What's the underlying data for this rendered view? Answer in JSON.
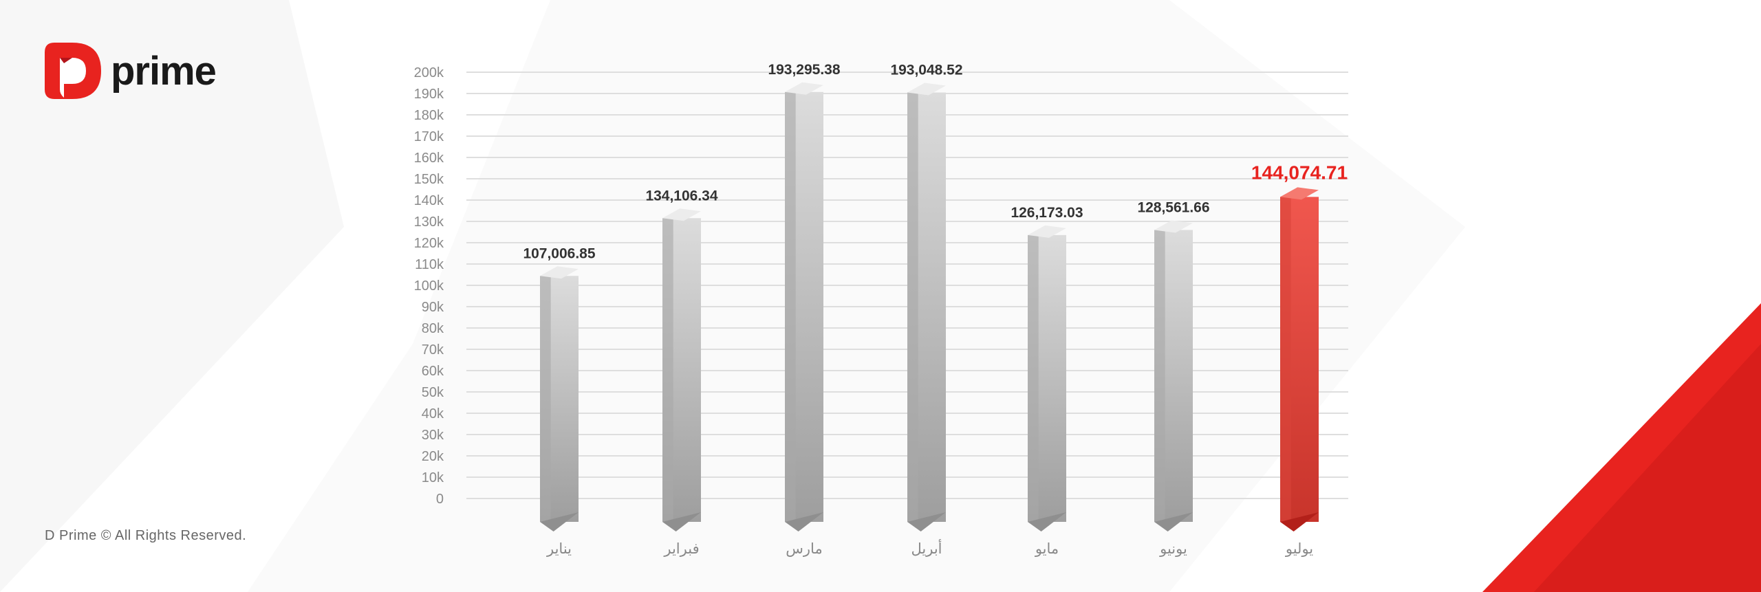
{
  "brand": {
    "logo_text": "prime",
    "copyright": "D Prime © All Rights Reserved.",
    "accent": "#e8231f"
  },
  "chart_data": {
    "type": "bar",
    "categories": [
      "يناير",
      "فبراير",
      "مارس",
      "أبريل",
      "مايو",
      "يونيو",
      "يوليو"
    ],
    "values": [
      107006.85,
      134106.34,
      193295.38,
      193048.52,
      126173.03,
      128561.66,
      144074.71
    ],
    "value_labels": [
      "107,006.85",
      "134,106.34",
      "193,295.38",
      "193,048.52",
      "126,173.03",
      "128,561.66",
      "144,074.71"
    ],
    "highlight_index": 6,
    "bar_color": "#bdbdbd",
    "highlight_color": "#e8352c",
    "ylim": [
      0,
      200000
    ],
    "yticks": [
      "0",
      "10k",
      "20k",
      "30k",
      "40k",
      "50k",
      "60k",
      "70k",
      "80k",
      "90k",
      "100k",
      "110k",
      "120k",
      "130k",
      "140k",
      "150k",
      "160k",
      "170k",
      "180k",
      "190k",
      "200k"
    ],
    "grid": true,
    "legend": "none"
  }
}
